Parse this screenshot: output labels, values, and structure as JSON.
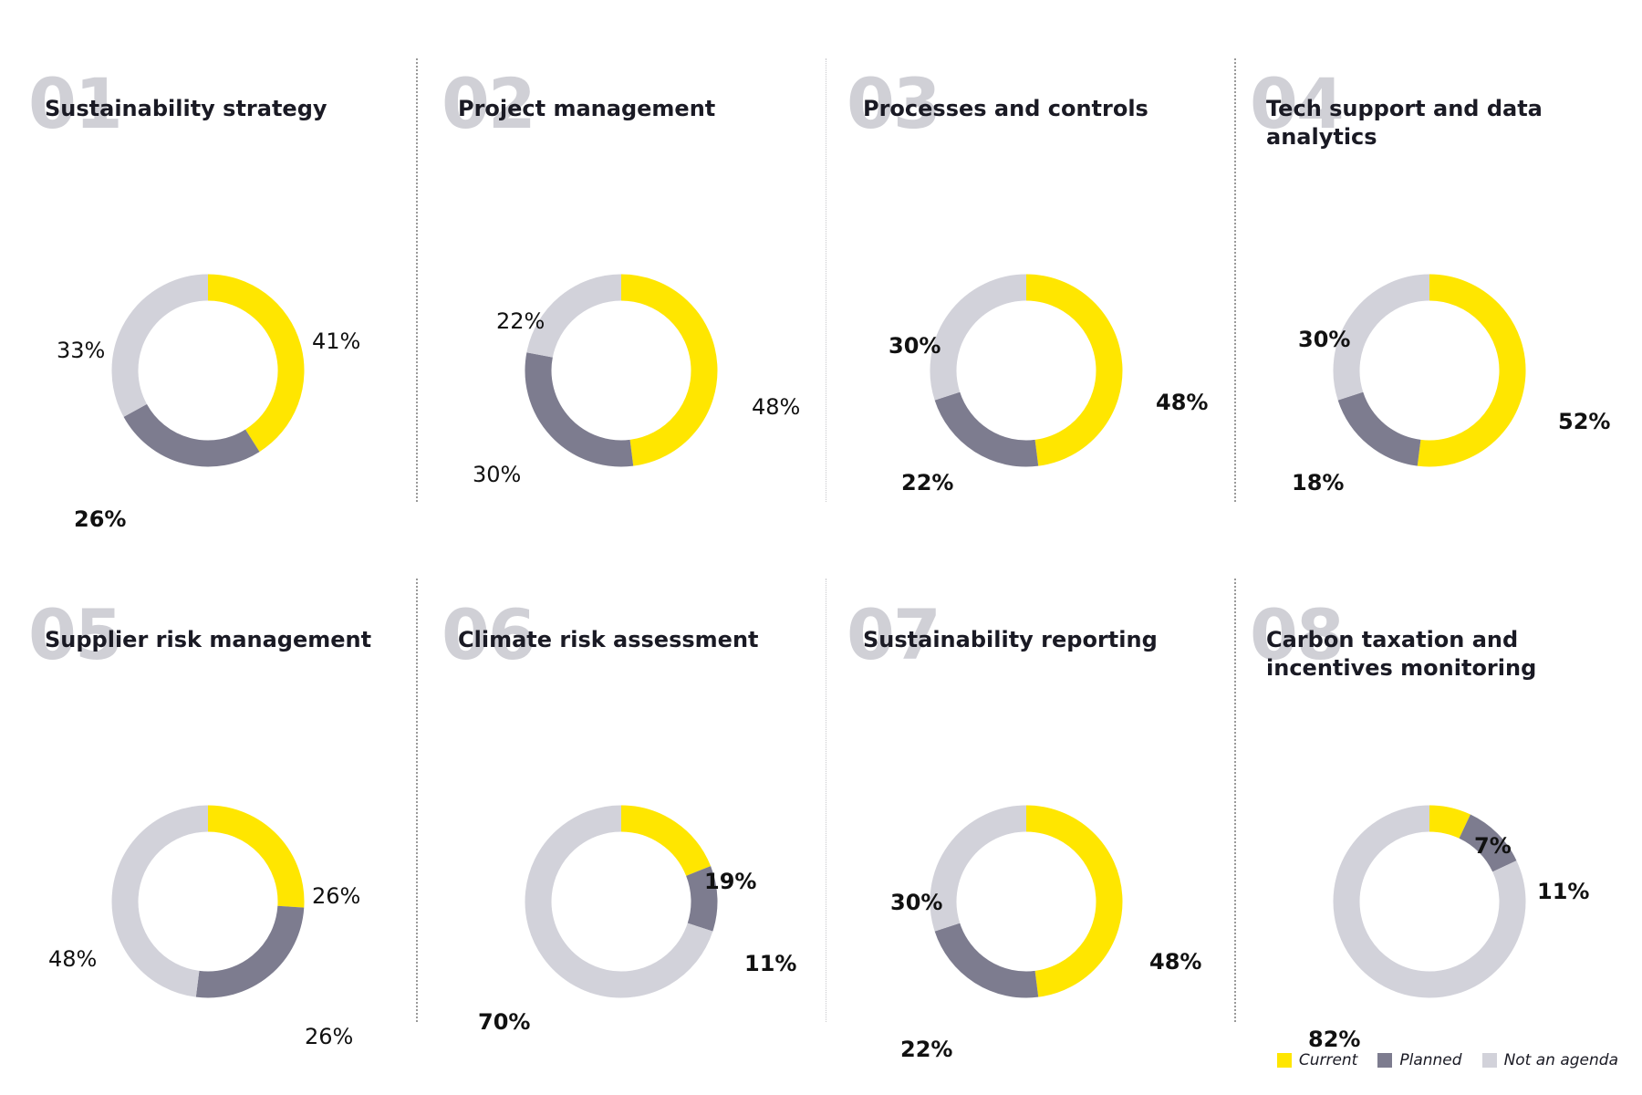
{
  "colors": {
    "current": "#FFE600",
    "planned": "#7D7C8F",
    "not_agenda": "#D2D2DA"
  },
  "legend": {
    "current_label": "Current",
    "planned_label": "Planned",
    "not_agenda_label": "Not an agenda"
  },
  "chart_data": [
    {
      "type": "pie",
      "number": "01",
      "title": "Sustainability strategy",
      "categories": [
        "Current",
        "Planned",
        "Not an agenda"
      ],
      "values": [
        41,
        26,
        33
      ],
      "labels": [
        "41%",
        "26%",
        "33%"
      ]
    },
    {
      "type": "pie",
      "number": "02",
      "title": "Project management",
      "categories": [
        "Current",
        "Planned",
        "Not an agenda"
      ],
      "values": [
        48,
        30,
        22
      ],
      "labels": [
        "48%",
        "30%",
        "22%"
      ]
    },
    {
      "type": "pie",
      "number": "03",
      "title": "Processes and controls",
      "categories": [
        "Current",
        "Planned",
        "Not an agenda"
      ],
      "values": [
        48,
        22,
        30
      ],
      "labels": [
        "48%",
        "22%",
        "30%"
      ]
    },
    {
      "type": "pie",
      "number": "04",
      "title": "Tech support and data analytics",
      "categories": [
        "Current",
        "Planned",
        "Not an agenda"
      ],
      "values": [
        52,
        18,
        30
      ],
      "labels": [
        "52%",
        "18%",
        "30%"
      ]
    },
    {
      "type": "pie",
      "number": "05",
      "title": "Supplier risk management",
      "categories": [
        "Current",
        "Planned",
        "Not an agenda"
      ],
      "values": [
        26,
        26,
        48
      ],
      "labels": [
        "26%",
        "26%",
        "48%"
      ]
    },
    {
      "type": "pie",
      "number": "06",
      "title": "Climate risk assessment",
      "categories": [
        "Current",
        "Planned",
        "Not an agenda"
      ],
      "values": [
        19,
        11,
        70
      ],
      "labels": [
        "19%",
        "11%",
        "70%"
      ]
    },
    {
      "type": "pie",
      "number": "07",
      "title": "Sustainability reporting",
      "categories": [
        "Current",
        "Planned",
        "Not an agenda"
      ],
      "values": [
        48,
        22,
        30
      ],
      "labels": [
        "48%",
        "22%",
        "30%"
      ]
    },
    {
      "type": "pie",
      "number": "08",
      "title": "Carbon taxation and incentives monitoring",
      "categories": [
        "Current",
        "Planned",
        "Not an agenda"
      ],
      "values": [
        7,
        11,
        82
      ],
      "labels": [
        "7%",
        "11%",
        "82%"
      ]
    }
  ]
}
